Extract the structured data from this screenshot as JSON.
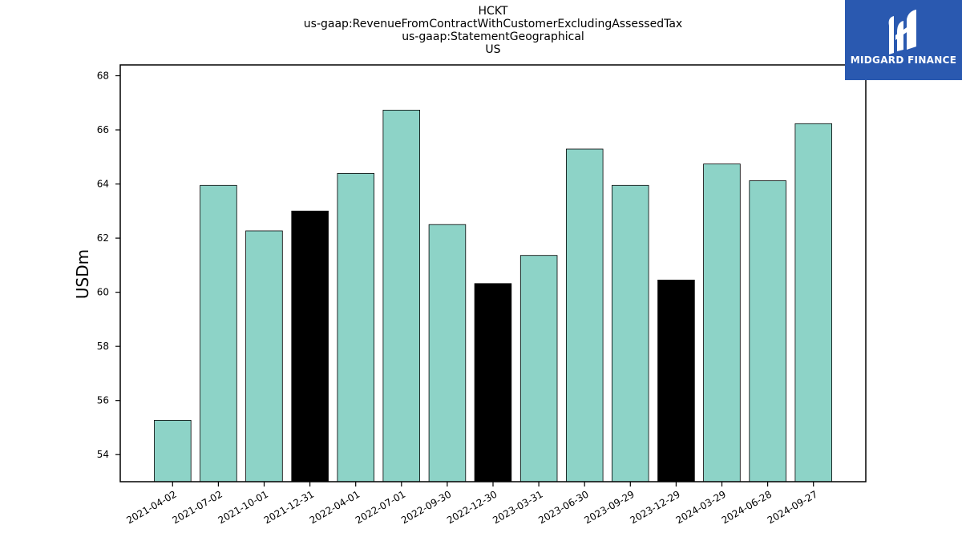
{
  "chart_data": {
    "type": "bar",
    "title_lines": [
      "HCKT",
      "us-gaap:RevenueFromContractWithCustomerExcludingAssessedTax",
      "us-gaap:StatementGeographical",
      "US"
    ],
    "ylabel": "USDm",
    "xlabel": "",
    "ylim": [
      53.0,
      68.4
    ],
    "yticks": [
      54,
      56,
      58,
      60,
      62,
      64,
      66,
      68
    ],
    "categories": [
      "2021-04-02",
      "2021-07-02",
      "2021-10-01",
      "2021-12-31",
      "2022-04-01",
      "2022-07-01",
      "2022-09-30",
      "2022-12-30",
      "2023-03-31",
      "2023-06-30",
      "2023-09-29",
      "2023-12-29",
      "2024-03-29",
      "2024-06-28",
      "2024-09-27"
    ],
    "values": [
      55.27,
      63.95,
      62.27,
      63.0,
      64.39,
      66.73,
      62.5,
      60.32,
      61.36,
      65.29,
      63.95,
      60.45,
      64.74,
      64.12,
      66.23
    ],
    "highlighted": [
      false,
      false,
      false,
      true,
      false,
      false,
      false,
      true,
      false,
      false,
      false,
      true,
      false,
      false,
      false
    ],
    "bar_color": "#8dd3c7",
    "highlight_color": "#000000",
    "grid": false,
    "legend": "none"
  },
  "logo": {
    "text": "MIDGARD FINANCE",
    "background": "#2a59b0"
  }
}
